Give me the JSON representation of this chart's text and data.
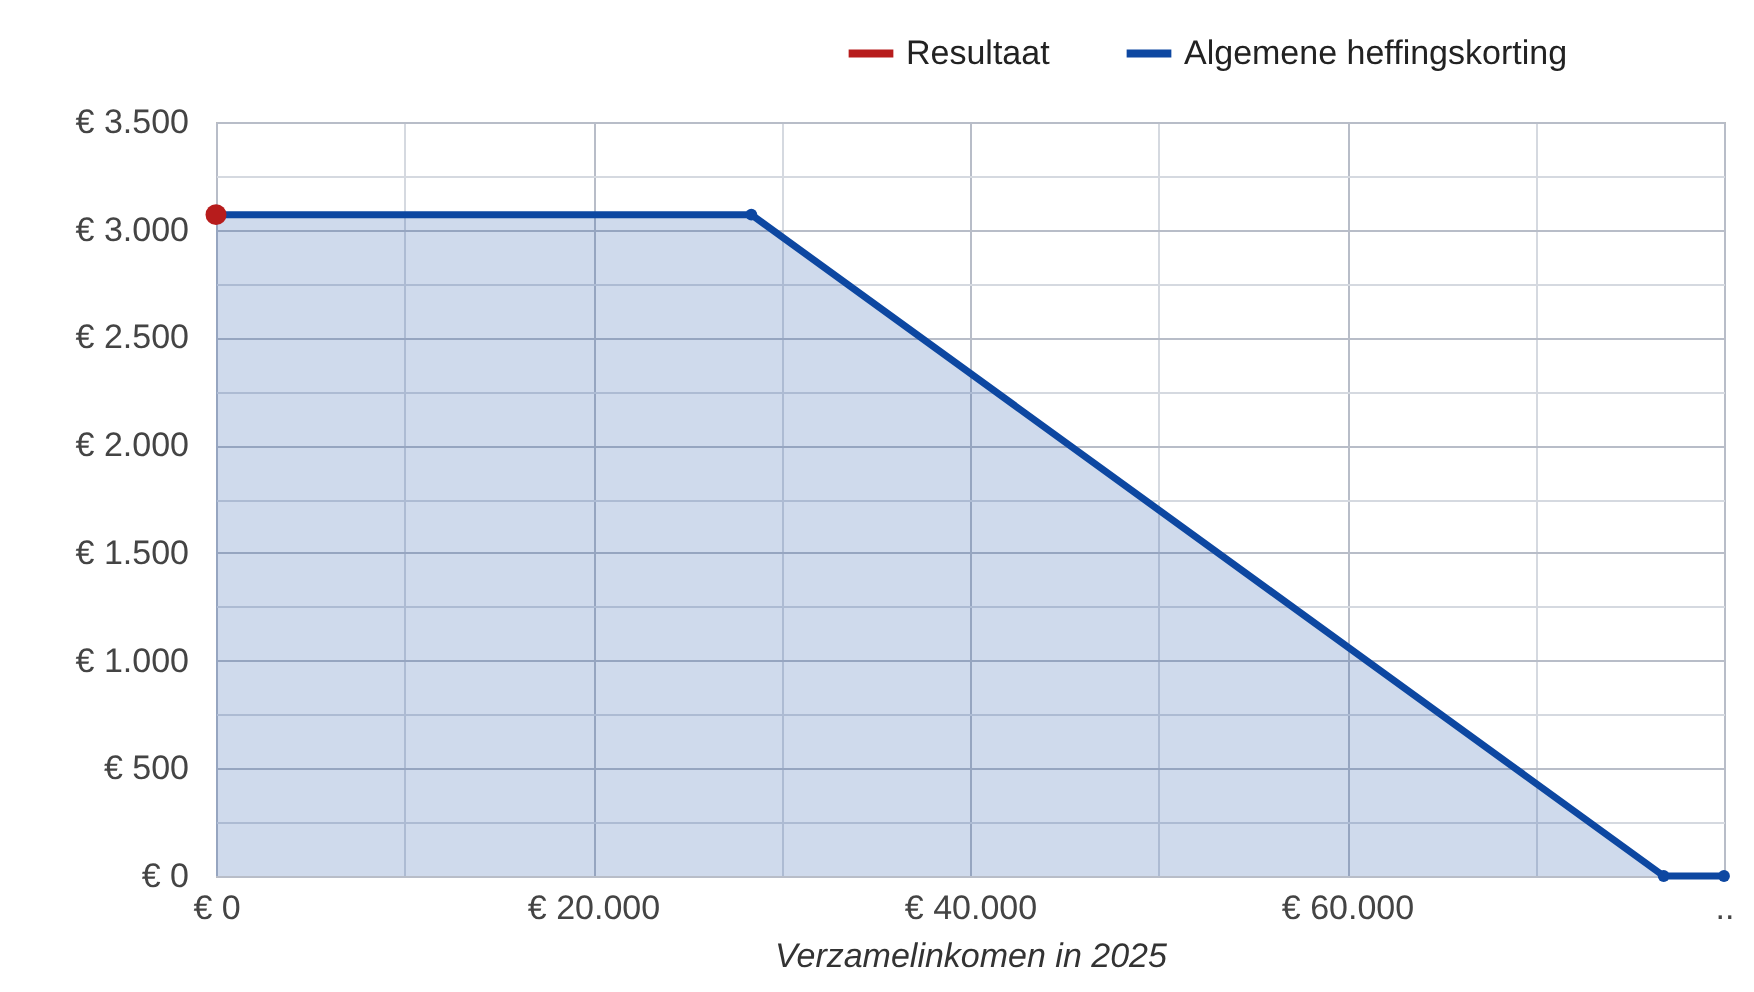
{
  "chart_data": {
    "type": "area",
    "xlabel": "Verzamelinkomen in 2025",
    "xlim": [
      0,
      80000
    ],
    "xticks": [
      {
        "value": 0,
        "label": "€ 0"
      },
      {
        "value": 10000,
        "label": null
      },
      {
        "value": 20000,
        "label": "€ 20.000"
      },
      {
        "value": 30000,
        "label": null
      },
      {
        "value": 40000,
        "label": "€ 40.000"
      },
      {
        "value": 50000,
        "label": null
      },
      {
        "value": 60000,
        "label": "€ 60.000"
      },
      {
        "value": 70000,
        "label": null
      },
      {
        "value": 80000,
        "label": ".."
      }
    ],
    "ylim": [
      0,
      3500
    ],
    "yticks": [
      {
        "value": 0,
        "label": "€ 0"
      },
      {
        "value": 250,
        "label": null
      },
      {
        "value": 500,
        "label": "€ 500"
      },
      {
        "value": 750,
        "label": null
      },
      {
        "value": 1000,
        "label": "€ 1.000"
      },
      {
        "value": 1250,
        "label": null
      },
      {
        "value": 1500,
        "label": "€ 1.500"
      },
      {
        "value": 1750,
        "label": null
      },
      {
        "value": 2000,
        "label": "€ 2.000"
      },
      {
        "value": 2250,
        "label": null
      },
      {
        "value": 2500,
        "label": "€ 2.500"
      },
      {
        "value": 2750,
        "label": null
      },
      {
        "value": 3000,
        "label": "€ 3.000"
      },
      {
        "value": 3250,
        "label": null
      },
      {
        "value": 3500,
        "label": "€ 3.500"
      }
    ],
    "grid": true,
    "legend": "top right",
    "marker": "circle",
    "series": [
      {
        "name": "Resultaat",
        "type": "line",
        "color": "#b71c1c",
        "x": [
          0
        ],
        "values": [
          3070
        ]
      },
      {
        "name": "Algemene heffingskorting",
        "color": "#0d47a1",
        "x": [
          0,
          28400,
          76800,
          80000
        ],
        "values": [
          3070,
          3070,
          0,
          0
        ]
      }
    ]
  }
}
